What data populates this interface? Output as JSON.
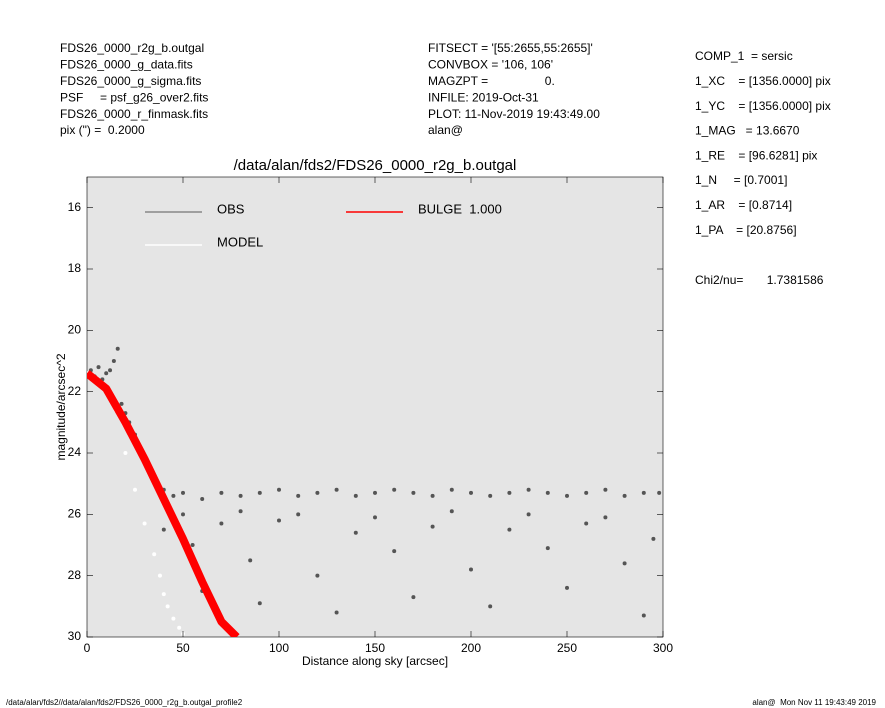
{
  "header": {
    "left": [
      "FDS26_0000_r2g_b.outgal",
      "FDS26_0000_g_data.fits",
      "FDS26_0000_g_sigma.fits",
      "PSF     = psf_g26_over2.fits",
      "FDS26_0000_r_finmask.fits",
      "pix (\") =  0.2000"
    ],
    "center": [
      "FITSECT = '[55:2655,55:2655]'",
      "CONVBOX = '106, 106'",
      "MAGZPT =                 0.",
      "INFILE: 2019-Oct-31",
      "PLOT: 11-Nov-2019 19:43:49.00",
      "alan@"
    ]
  },
  "params": [
    "COMP_1  = sersic",
    "1_XC    = [1356.0000] pix",
    "1_YC    = [1356.0000] pix",
    "1_MAG   = 13.6670",
    "1_RE    = [96.6281] pix",
    "1_N     = [0.7001]",
    "1_AR    = [0.8714]",
    "1_PA    = [20.8756]"
  ],
  "chi2": "Chi2/nu=       1.7381586",
  "footer": {
    "left": "/data/alan/fds2//data/alan/fds2/FDS26_0000_r2g_b.outgal_profile2",
    "right": "alan@  Mon Nov 11 19:43:49 2019"
  },
  "chart_data": {
    "type": "scatter",
    "title": "/data/alan/fds2/FDS26_0000_r2g_b.outgal",
    "x_label": "Distance along sky [arcsec]",
    "y_label": "magnitude/arcsec^2",
    "xlim": [
      0,
      300
    ],
    "xticks": [
      0,
      50,
      100,
      150,
      200,
      250,
      300
    ],
    "ylim": [
      30,
      15
    ],
    "yticks": [
      16,
      18,
      20,
      22,
      24,
      26,
      28,
      30
    ],
    "background": "#e5e5e5",
    "series": [
      {
        "name": "OBS",
        "color": "#555555",
        "legend_color": "#888888",
        "style": "points",
        "x": [
          2,
          4,
          6,
          8,
          10,
          12,
          14,
          16,
          18,
          20,
          22,
          25,
          28,
          30,
          33,
          36,
          40,
          45,
          50,
          60,
          70,
          80,
          90,
          100,
          110,
          120,
          130,
          140,
          150,
          160,
          170,
          180,
          190,
          200,
          210,
          220,
          230,
          240,
          250,
          260,
          270,
          280,
          290,
          298,
          40,
          55,
          70,
          85,
          100,
          120,
          140,
          160,
          180,
          200,
          220,
          240,
          260,
          280,
          295,
          60,
          90,
          130,
          170,
          210,
          250,
          290,
          50,
          80,
          110,
          150,
          190,
          230,
          270
        ],
        "values": [
          21.3,
          21.5,
          21.2,
          21.6,
          21.4,
          21.3,
          21.0,
          20.6,
          22.4,
          22.7,
          23.0,
          23.4,
          23.9,
          24.2,
          24.6,
          24.9,
          25.2,
          25.4,
          25.3,
          25.5,
          25.3,
          25.4,
          25.3,
          25.2,
          25.4,
          25.3,
          25.2,
          25.4,
          25.3,
          25.2,
          25.3,
          25.4,
          25.2,
          25.3,
          25.4,
          25.3,
          25.2,
          25.3,
          25.4,
          25.3,
          25.2,
          25.4,
          25.3,
          25.3,
          26.5,
          27.0,
          26.3,
          27.5,
          26.2,
          28.0,
          26.6,
          27.2,
          26.4,
          27.8,
          26.5,
          27.1,
          26.3,
          27.6,
          26.8,
          28.5,
          28.9,
          29.2,
          28.7,
          29.0,
          28.4,
          29.3,
          26.0,
          25.9,
          26.0,
          26.1,
          25.9,
          26.0,
          26.1
        ]
      },
      {
        "name": "MODEL",
        "color": "#ffffff",
        "legend_color": "#ffffff",
        "style": "points",
        "x": [
          0,
          5,
          10,
          15,
          20,
          25,
          30,
          35,
          38,
          40,
          42,
          45,
          48,
          50
        ],
        "values": [
          21.4,
          21.6,
          22.0,
          22.6,
          24.0,
          25.2,
          26.3,
          27.3,
          28.0,
          28.6,
          29.0,
          29.4,
          29.7,
          29.9
        ]
      },
      {
        "name": "BULGE  1.000",
        "color": "#ff0000",
        "legend_color": "#ff0000",
        "style": "line",
        "x": [
          0,
          10,
          20,
          30,
          40,
          50,
          60,
          70,
          78
        ],
        "values": [
          21.4,
          21.9,
          23.0,
          24.2,
          25.5,
          26.8,
          28.2,
          29.5,
          30.0
        ]
      }
    ]
  }
}
